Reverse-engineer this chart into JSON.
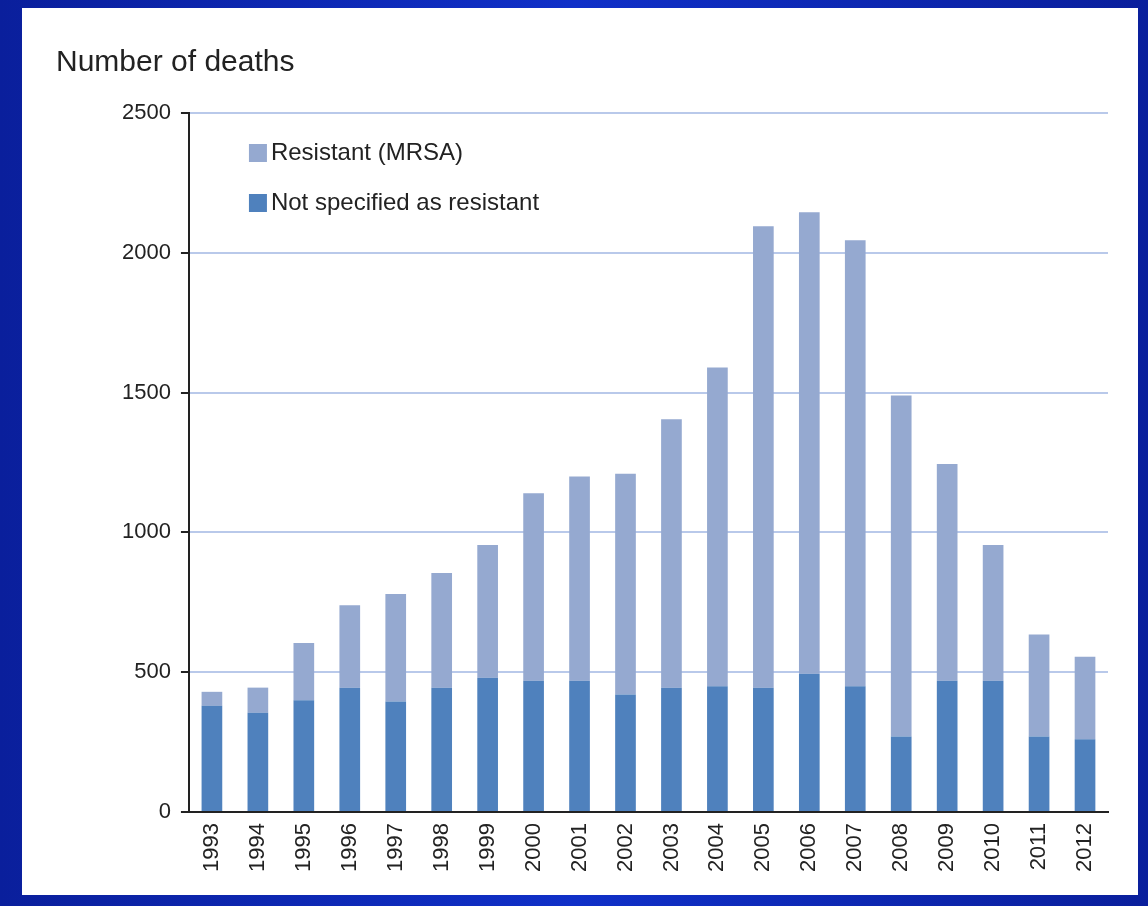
{
  "chart_data": {
    "type": "bar",
    "ylabel": "Number of deaths",
    "categories": [
      "1993",
      "1994",
      "1995",
      "1996",
      "1997",
      "1998",
      "1999",
      "2000",
      "2001",
      "2002",
      "2003",
      "2004",
      "2005",
      "2006",
      "2007",
      "2008",
      "2009",
      "2010",
      "2011",
      "2012"
    ],
    "series": [
      {
        "name": "Not specified as resistant",
        "color": "#4f81bd",
        "values": [
          380,
          355,
          400,
          445,
          395,
          445,
          480,
          470,
          470,
          420,
          445,
          450,
          445,
          495,
          450,
          270,
          470,
          470,
          270,
          260
        ]
      },
      {
        "name": "Resistant (MRSA)",
        "color": "#95a9d0",
        "values": [
          50,
          90,
          205,
          295,
          385,
          410,
          475,
          670,
          730,
          790,
          960,
          1140,
          1650,
          1650,
          1595,
          1220,
          775,
          485,
          365,
          295
        ]
      }
    ],
    "stacked": true,
    "ylim": [
      0,
      2500
    ],
    "yticks": [
      0,
      500,
      1000,
      1500,
      2000,
      2500
    ],
    "grid": "y",
    "legend": "top left"
  }
}
